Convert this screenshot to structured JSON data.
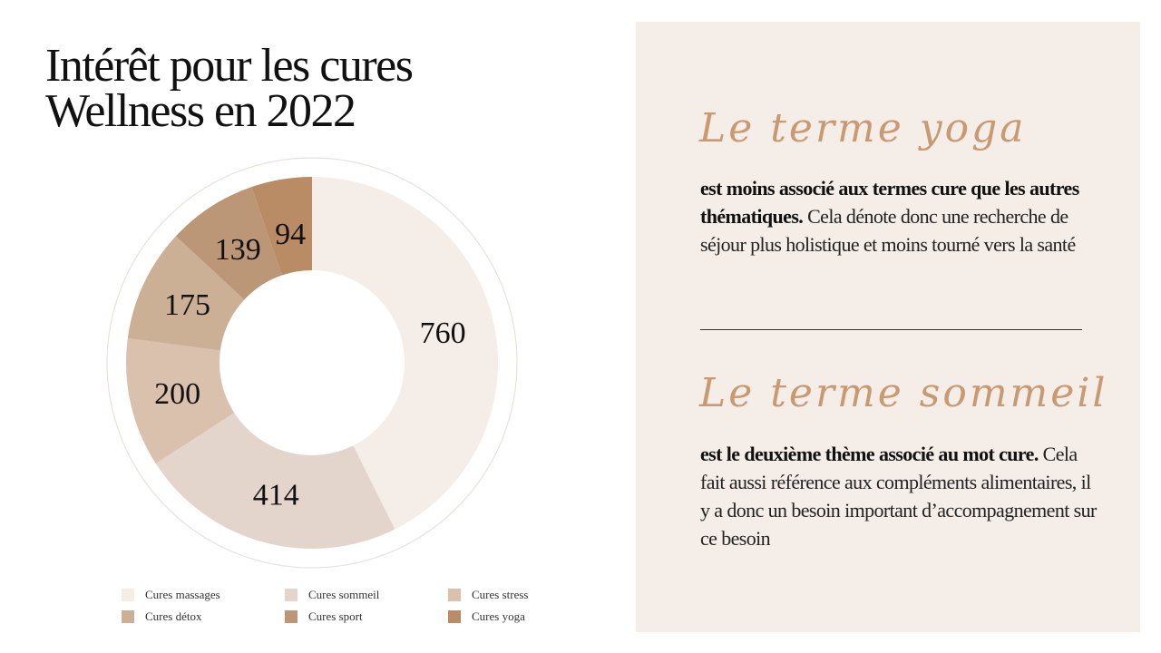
{
  "title": {
    "line1": "Intérêt pour les cures",
    "line2": "Wellness en 2022"
  },
  "chart_data": {
    "type": "pie",
    "variant": "donut",
    "categories": [
      "Cures massages",
      "Cures sommeil",
      "Cures stress",
      "Cures détox",
      "Cures sport",
      "Cures yoga"
    ],
    "values": [
      760,
      414,
      200,
      175,
      139,
      94
    ],
    "colors": [
      "#f4ede8",
      "#e3d5cc",
      "#d9c1ae",
      "#ccb096",
      "#bc9777",
      "#b98c65"
    ],
    "data_labels": true,
    "legend_position": "bottom"
  },
  "panel": {
    "heading1": "Le terme yoga",
    "p1_bold": "est moins associé aux termes cure que les autres thématiques.",
    "p1_rest": " Cela dénote donc une recherche de séjour plus holistique et moins tourné vers la santé",
    "heading2": "Le terme sommeil",
    "p2_bold": "est le deuxième thème associé au mot cure.",
    "p2_rest": " Cela fait aussi référence aux compléments alimentaires, il y a donc un besoin important d’accompagnement sur ce besoin",
    "heading_color": "#c99a72",
    "background": "#f4ede8"
  }
}
